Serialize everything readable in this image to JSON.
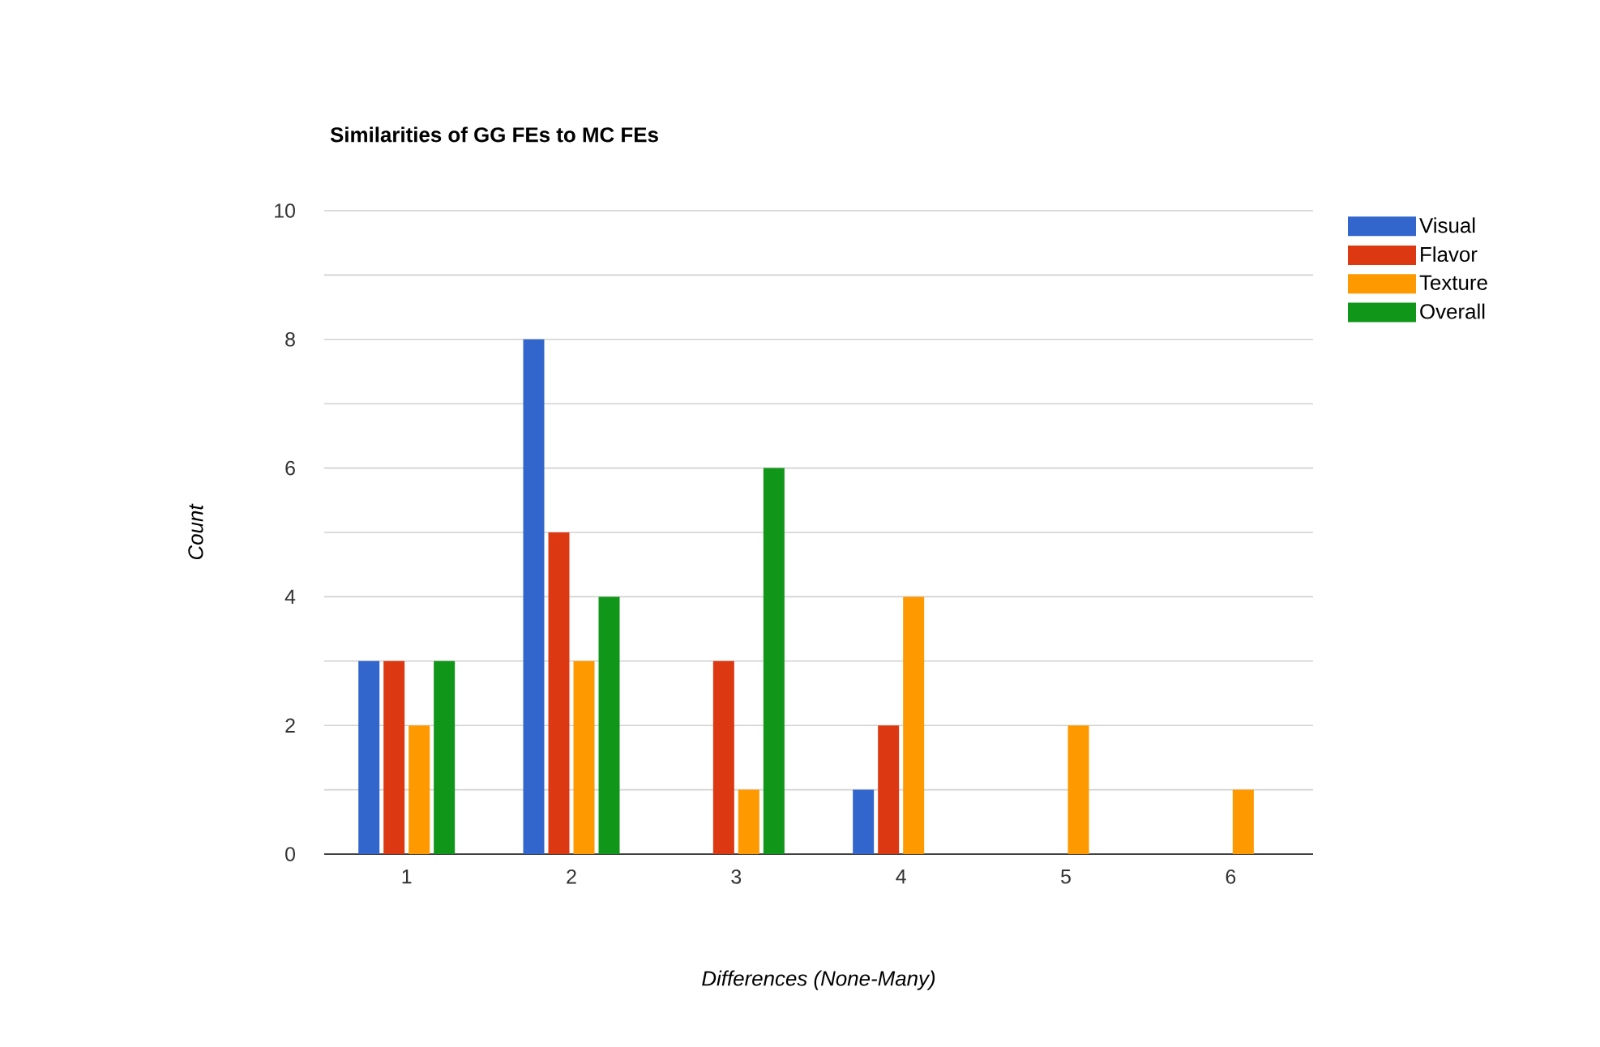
{
  "chart_data": {
    "type": "bar",
    "title": "Similarities of GG FEs to MC FEs",
    "xlabel": "Differences (None-Many)",
    "ylabel": "Count",
    "categories": [
      "1",
      "2",
      "3",
      "4",
      "5",
      "6"
    ],
    "series": [
      {
        "name": "Visual",
        "color": "#3366cc",
        "values": [
          3,
          8,
          0,
          1,
          0,
          0
        ]
      },
      {
        "name": "Flavor",
        "color": "#dc3912",
        "values": [
          3,
          5,
          3,
          2,
          0,
          0
        ]
      },
      {
        "name": "Texture",
        "color": "#ff9900",
        "values": [
          2,
          3,
          1,
          4,
          2,
          1
        ]
      },
      {
        "name": "Overall",
        "color": "#109618",
        "values": [
          3,
          4,
          6,
          0,
          0,
          0
        ]
      }
    ],
    "ylim": [
      0,
      10
    ],
    "yticks": [
      0,
      {
        "value": 1,
        "label": null
      },
      2,
      {
        "value": 3,
        "label": null
      },
      4,
      {
        "value": 5,
        "label": null
      },
      6,
      {
        "value": 7,
        "label": null
      },
      8,
      {
        "value": 9,
        "label": null
      },
      10
    ],
    "grid": "y",
    "legend": "top right"
  }
}
